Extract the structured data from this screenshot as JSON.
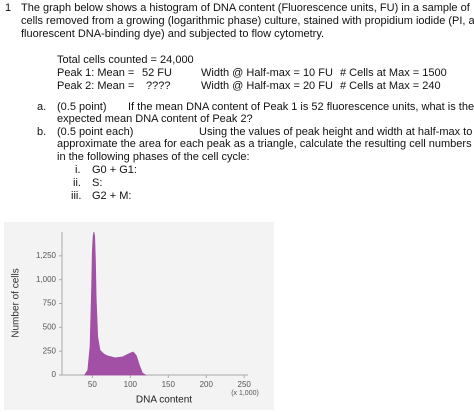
{
  "question": {
    "number": "1",
    "intro": [
      "The graph below shows a histogram of DNA content (Fluorescence units, FU) in a sample of",
      "cells removed from a growing (logarithmic phase) culture, stained with propidium iodide (PI, a",
      "fluorescent DNA-binding dye) and subjected to flow cytometry."
    ],
    "total": "Total cells counted = 24,000",
    "peaks": [
      [
        "Peak 1: Mean =",
        "52 FU",
        "Width @ Half-max = 10 FU",
        "# Cells at Max = 1500"
      ],
      [
        "Peak 2: Mean =",
        "????",
        "Width @ Half-max = 20 FU",
        "# Cells at Max =  240"
      ]
    ],
    "part_a": {
      "label": "a.",
      "points": "(0.5 point)",
      "lines": [
        "If the mean DNA content of Peak 1 is 52 fluorescence units, what is the",
        "expected mean DNA content of Peak 2?"
      ]
    },
    "part_b": {
      "label": "b.",
      "points": "(0.5   point each)",
      "lines": [
        "Using the values of peak height and width at half-max to",
        "approximate the area for each peak as a triangle, calculate the resulting cell numbers",
        "in the following phases of the cell cycle:"
      ]
    },
    "phases": [
      [
        "i.",
        "G0 + G1:"
      ],
      [
        "ii.",
        "S:"
      ],
      [
        "iii.",
        "G2 + M:"
      ]
    ]
  },
  "chart_data": {
    "type": "area",
    "x_label": "DNA content",
    "x_unit": "(x 1,000)",
    "y_label": "Number of cells",
    "color": "#a24fa6",
    "x": [
      40,
      44,
      47,
      49,
      50,
      51,
      52,
      53,
      54,
      55,
      57,
      60,
      65,
      70,
      80,
      90,
      95,
      100,
      104,
      108,
      112,
      116,
      120
    ],
    "values": [
      0,
      50,
      300,
      900,
      1300,
      1450,
      1500,
      1450,
      1200,
      800,
      400,
      260,
      220,
      200,
      180,
      190,
      210,
      230,
      240,
      200,
      100,
      20,
      0
    ],
    "xlim": [
      10,
      255
    ],
    "ylim": [
      0,
      1500
    ],
    "xticks": [
      50,
      100,
      150,
      200,
      250
    ],
    "yticks": [
      0,
      250,
      500,
      750,
      {
        "value": 1000,
        "label": "1,000"
      },
      {
        "value": 1250,
        "label": "1,250"
      }
    ]
  }
}
